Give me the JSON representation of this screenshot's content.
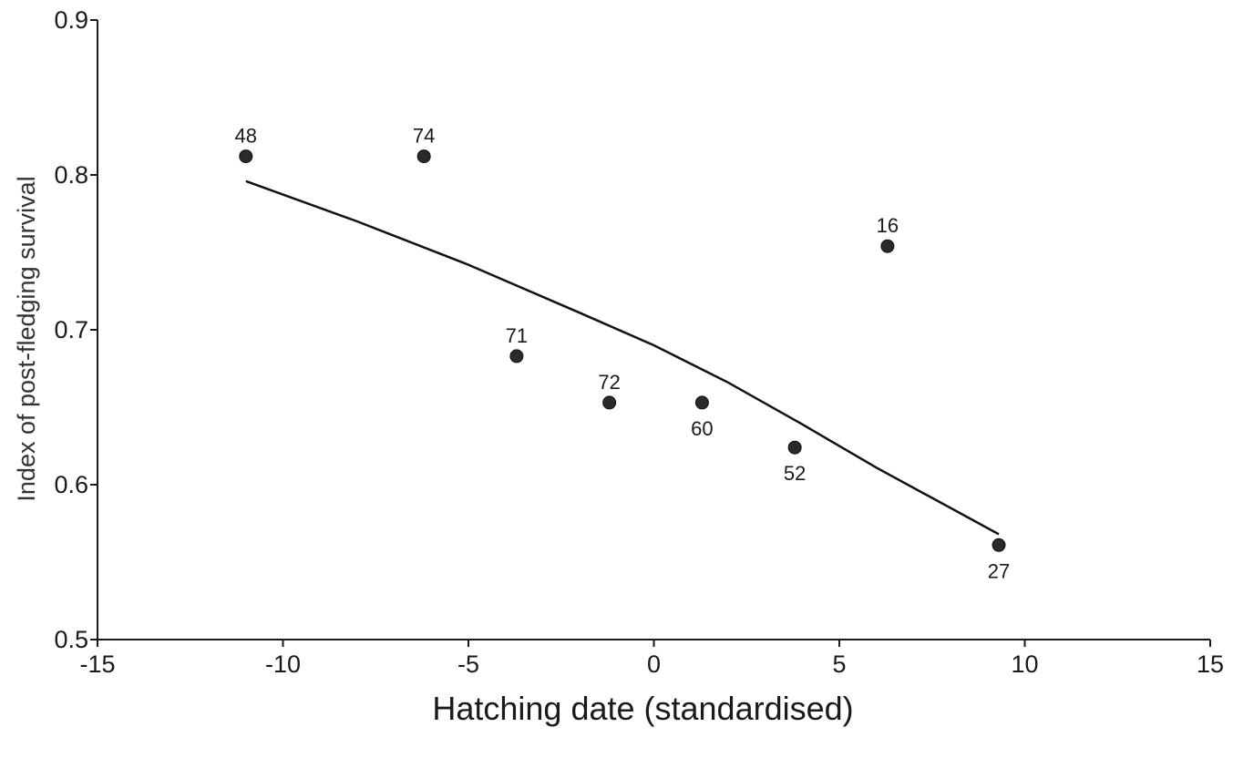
{
  "chart_data": {
    "type": "scatter",
    "title": "",
    "xlabel": "Hatching date (standardised)",
    "ylabel": "Index of post-fledging survival",
    "xlim": [
      -15,
      15
    ],
    "ylim": [
      0.5,
      0.9
    ],
    "xticks": [
      -15,
      -10,
      -5,
      0,
      5,
      10,
      15
    ],
    "yticks": [
      0.5,
      0.6,
      0.7,
      0.8,
      0.9
    ],
    "xtick_labels": [
      "-15",
      "-10",
      "-5",
      "0",
      "5",
      "10",
      "15"
    ],
    "ytick_labels": [
      "0.5",
      "0.6",
      "0.7",
      "0.8",
      "0.9"
    ],
    "grid": false,
    "points": [
      {
        "x": -11.0,
        "y": 0.812,
        "label": "48",
        "label_pos": "above"
      },
      {
        "x": -6.2,
        "y": 0.812,
        "label": "74",
        "label_pos": "above"
      },
      {
        "x": -3.7,
        "y": 0.683,
        "label": "71",
        "label_pos": "above"
      },
      {
        "x": -1.2,
        "y": 0.653,
        "label": "72",
        "label_pos": "above"
      },
      {
        "x": 1.3,
        "y": 0.653,
        "label": "60",
        "label_pos": "below"
      },
      {
        "x": 3.8,
        "y": 0.624,
        "label": "52",
        "label_pos": "below"
      },
      {
        "x": 6.3,
        "y": 0.754,
        "label": "16",
        "label_pos": "above"
      },
      {
        "x": 9.3,
        "y": 0.561,
        "label": "27",
        "label_pos": "below"
      }
    ],
    "fit_line": {
      "x": [
        -11.0,
        -8.0,
        -5.0,
        -2.0,
        0.0,
        2.0,
        4.0,
        6.0,
        9.3
      ],
      "y": [
        0.796,
        0.77,
        0.742,
        0.711,
        0.69,
        0.666,
        0.639,
        0.611,
        0.568
      ]
    }
  }
}
